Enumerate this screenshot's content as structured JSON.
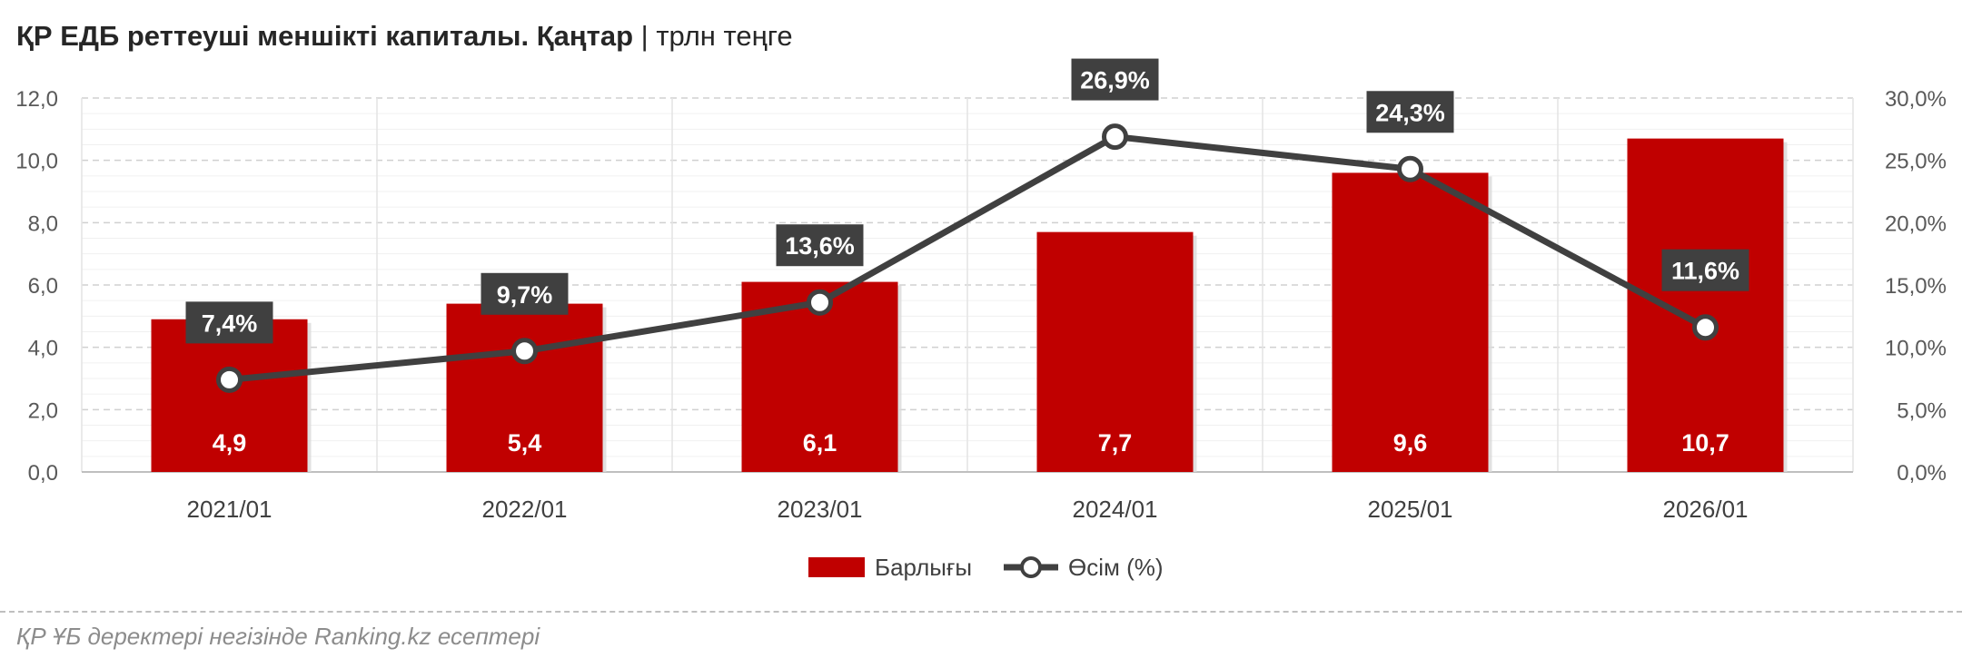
{
  "title": "ҚР ЕДБ реттеуші меншікті капиталы. Қаңтар",
  "title_separator": "|",
  "unit": "трлн теңге",
  "source": "ҚР ҰБ деректері негізінде Ranking.kz есептері",
  "chart_data": {
    "type": "bar",
    "categories": [
      "2021/01",
      "2022/01",
      "2023/01",
      "2024/01",
      "2025/01",
      "2026/01"
    ],
    "series": [
      {
        "name": "Барлығы",
        "type": "bar",
        "axis": "left",
        "color": "#c00000",
        "values": [
          4.9,
          5.4,
          6.1,
          7.7,
          9.6,
          10.7
        ],
        "labels": [
          "4,9",
          "5,4",
          "6,1",
          "7,7",
          "9,6",
          "10,7"
        ]
      },
      {
        "name": "Өсім (%)",
        "type": "line",
        "axis": "right",
        "color": "#404040",
        "values": [
          7.4,
          9.7,
          13.6,
          26.9,
          24.3,
          11.6
        ],
        "labels": [
          "7,4%",
          "9,7%",
          "13,6%",
          "26,9%",
          "24,3%",
          "11,6%"
        ]
      }
    ],
    "y_left": {
      "min": 0,
      "max": 12,
      "step": 2,
      "tick_labels": [
        "0,0",
        "2,0",
        "4,0",
        "6,0",
        "8,0",
        "10,0",
        "12,0"
      ]
    },
    "y_right": {
      "min": 0,
      "max": 30,
      "step": 5,
      "tick_labels": [
        "0,0%",
        "5,0%",
        "10,0%",
        "15,0%",
        "20,0%",
        "25,0%",
        "30,0%"
      ]
    },
    "legend_position": "bottom",
    "grid": true
  }
}
